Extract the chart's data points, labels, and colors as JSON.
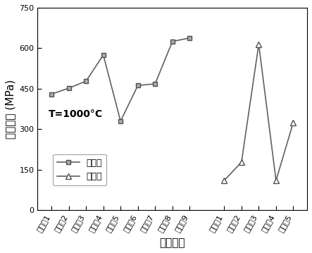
{
  "shi_labels": [
    "实施例1",
    "实施例2",
    "实施例3",
    "实施例4",
    "实施例5",
    "实施例6",
    "实施例7",
    "实施例8",
    "实施例9"
  ],
  "shi_values": [
    430,
    452,
    478,
    575,
    330,
    462,
    468,
    625,
    638
  ],
  "bi_labels": [
    "比较例1",
    "比较例2",
    "比较例3",
    "比较例4",
    "比较例5"
  ],
  "bi_values": [
    110,
    178,
    615,
    110,
    325
  ],
  "ylim": [
    0,
    750
  ],
  "yticks": [
    0,
    150,
    300,
    450,
    600,
    750
  ],
  "ylabel": "抗拉强度 (MPa)",
  "xlabel": "试样编号",
  "annotation": "T=1000°C",
  "legend_shi": "实施例",
  "legend_bi": "比较例",
  "line_color": "#606060",
  "shi_marker": "s",
  "bi_marker": "^",
  "marker_facecolor": "#aaaaaa",
  "marker_edgecolor": "#505050",
  "label_fontsize": 11,
  "tick_fontsize": 8,
  "legend_fontsize": 9,
  "annot_fontsize": 10
}
